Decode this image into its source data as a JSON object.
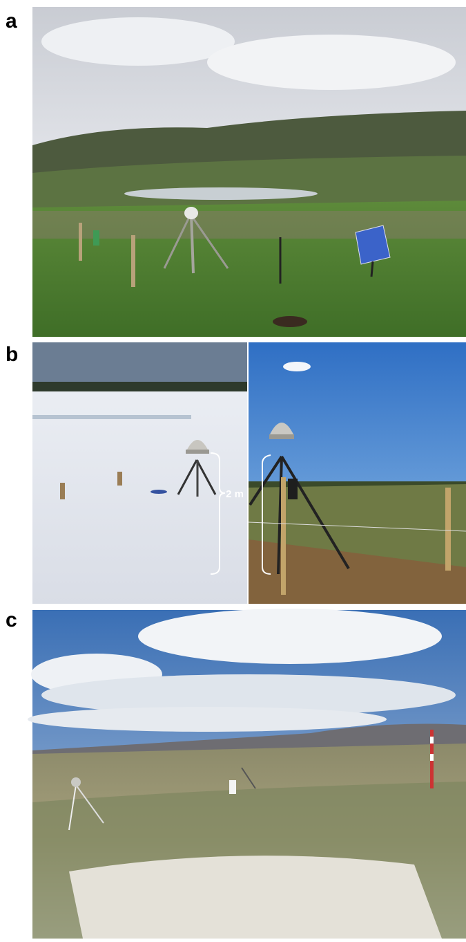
{
  "panels": [
    {
      "label": "a"
    },
    {
      "label": "b",
      "annotation": "2 m"
    },
    {
      "label": "c"
    }
  ]
}
